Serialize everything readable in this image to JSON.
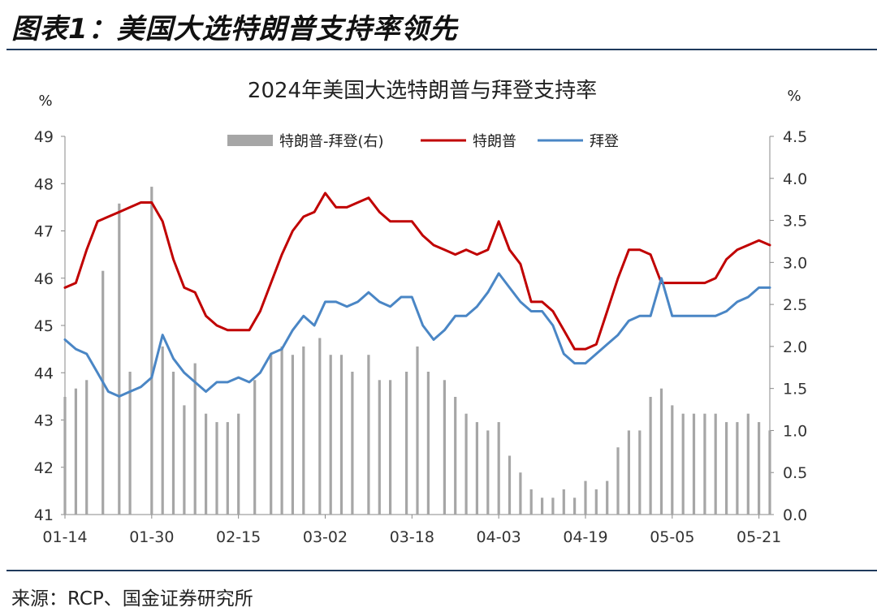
{
  "figure": {
    "title": "图表1：美国大选特朗普支持率领先",
    "source": "来源：RCP、国金证券研究所"
  },
  "chart_data": {
    "type": "line+bar",
    "title": "2024年美国大选特朗普与拜登支持率",
    "left_unit": "%",
    "right_unit": "%",
    "ylim_left": [
      41,
      49
    ],
    "ylim_right": [
      0,
      4.5
    ],
    "left_ticks": [
      "49",
      "48",
      "47",
      "46",
      "45",
      "44",
      "43",
      "42",
      "41"
    ],
    "right_ticks": [
      "4.5",
      "4.0",
      "3.5",
      "3.0",
      "2.5",
      "2.0",
      "1.5",
      "1.0",
      "0.5",
      "0.0"
    ],
    "x_range": [
      "01-14",
      "05-23"
    ],
    "x_ticks": [
      "01-14",
      "01-30",
      "02-15",
      "03-02",
      "03-18",
      "04-03",
      "04-19",
      "05-05",
      "05-21"
    ],
    "legend_position": "top",
    "colors": {
      "trump": "#c00000",
      "biden": "#4a86c5",
      "diff": "#a6a6a6"
    },
    "series": [
      {
        "name": "特朗普-拜登(右)",
        "kind": "bar",
        "axis": "right",
        "x": [
          "01-14",
          "01-16",
          "01-18",
          "01-21",
          "01-24",
          "01-26",
          "01-30",
          "02-01",
          "02-03",
          "02-05",
          "02-07",
          "02-09",
          "02-11",
          "02-13",
          "02-15",
          "02-18",
          "02-21",
          "02-23",
          "02-25",
          "02-27",
          "03-01",
          "03-03",
          "03-05",
          "03-07",
          "03-10",
          "03-12",
          "03-14",
          "03-17",
          "03-19",
          "03-21",
          "03-24",
          "03-26",
          "03-28",
          "03-30",
          "04-01",
          "04-03",
          "04-05",
          "04-07",
          "04-09",
          "04-11",
          "04-13",
          "04-15",
          "04-17",
          "04-19",
          "04-21",
          "04-23",
          "04-25",
          "04-27",
          "04-29",
          "05-01",
          "05-03",
          "05-05",
          "05-07",
          "05-09",
          "05-11",
          "05-13",
          "05-15",
          "05-17",
          "05-19",
          "05-21",
          "05-23"
        ],
        "values": [
          1.4,
          1.5,
          1.6,
          2.9,
          3.7,
          1.7,
          3.9,
          2.0,
          1.7,
          1.3,
          1.8,
          1.2,
          1.1,
          1.1,
          1.2,
          1.6,
          1.9,
          2.0,
          1.9,
          2.0,
          2.1,
          1.9,
          1.9,
          1.7,
          1.9,
          1.6,
          1.6,
          1.7,
          2.0,
          1.7,
          1.6,
          1.4,
          1.2,
          1.1,
          1.0,
          1.1,
          0.7,
          0.5,
          0.3,
          0.2,
          0.2,
          0.3,
          0.2,
          0.4,
          0.3,
          0.4,
          0.8,
          1.0,
          1.0,
          1.4,
          1.5,
          1.3,
          1.2,
          1.2,
          1.2,
          1.2,
          1.1,
          1.1,
          1.2,
          1.1,
          1.0
        ]
      },
      {
        "name": "特朗普",
        "kind": "line",
        "axis": "left",
        "x": [
          "01-14",
          "01-16",
          "01-18",
          "01-20",
          "01-22",
          "01-24",
          "01-26",
          "01-28",
          "01-30",
          "02-01",
          "02-03",
          "02-05",
          "02-07",
          "02-09",
          "02-11",
          "02-13",
          "02-15",
          "02-17",
          "02-19",
          "02-21",
          "02-23",
          "02-25",
          "02-27",
          "02-29",
          "03-02",
          "03-04",
          "03-06",
          "03-08",
          "03-10",
          "03-12",
          "03-14",
          "03-16",
          "03-18",
          "03-20",
          "03-22",
          "03-24",
          "03-26",
          "03-28",
          "03-30",
          "04-01",
          "04-03",
          "04-05",
          "04-07",
          "04-09",
          "04-11",
          "04-13",
          "04-15",
          "04-17",
          "04-19",
          "04-21",
          "04-23",
          "04-25",
          "04-27",
          "04-29",
          "05-01",
          "05-03",
          "05-05",
          "05-07",
          "05-09",
          "05-11",
          "05-13",
          "05-15",
          "05-17",
          "05-19",
          "05-21",
          "05-23"
        ],
        "values": [
          45.8,
          45.9,
          46.6,
          47.2,
          47.3,
          47.4,
          47.5,
          47.6,
          47.6,
          47.2,
          46.4,
          45.8,
          45.7,
          45.2,
          45.0,
          44.9,
          44.9,
          44.9,
          45.3,
          45.9,
          46.5,
          47.0,
          47.3,
          47.4,
          47.8,
          47.5,
          47.5,
          47.6,
          47.7,
          47.4,
          47.2,
          47.2,
          47.2,
          46.9,
          46.7,
          46.6,
          46.5,
          46.6,
          46.5,
          46.6,
          47.2,
          46.6,
          46.3,
          45.5,
          45.5,
          45.3,
          44.9,
          44.5,
          44.5,
          44.6,
          45.3,
          46.0,
          46.6,
          46.6,
          46.5,
          45.9,
          45.9,
          45.9,
          45.9,
          45.9,
          46.0,
          46.4,
          46.6,
          46.7,
          46.8,
          46.7
        ]
      },
      {
        "name": "拜登",
        "kind": "line",
        "axis": "left",
        "x": [
          "01-14",
          "01-16",
          "01-18",
          "01-20",
          "01-22",
          "01-24",
          "01-26",
          "01-28",
          "01-30",
          "02-01",
          "02-03",
          "02-05",
          "02-07",
          "02-09",
          "02-11",
          "02-13",
          "02-15",
          "02-17",
          "02-19",
          "02-21",
          "02-23",
          "02-25",
          "02-27",
          "02-29",
          "03-02",
          "03-04",
          "03-06",
          "03-08",
          "03-10",
          "03-12",
          "03-14",
          "03-16",
          "03-18",
          "03-20",
          "03-22",
          "03-24",
          "03-26",
          "03-28",
          "03-30",
          "04-01",
          "04-03",
          "04-05",
          "04-07",
          "04-09",
          "04-11",
          "04-13",
          "04-15",
          "04-17",
          "04-19",
          "04-21",
          "04-23",
          "04-25",
          "04-27",
          "04-29",
          "05-01",
          "05-03",
          "05-05",
          "05-07",
          "05-09",
          "05-11",
          "05-13",
          "05-15",
          "05-17",
          "05-19",
          "05-21",
          "05-23"
        ],
        "values": [
          44.7,
          44.5,
          44.4,
          44.0,
          43.6,
          43.5,
          43.6,
          43.7,
          43.9,
          44.8,
          44.3,
          44.0,
          43.8,
          43.6,
          43.8,
          43.8,
          43.9,
          43.8,
          44.0,
          44.4,
          44.5,
          44.9,
          45.2,
          45.0,
          45.5,
          45.5,
          45.4,
          45.5,
          45.7,
          45.5,
          45.4,
          45.6,
          45.6,
          45.0,
          44.7,
          44.9,
          45.2,
          45.2,
          45.4,
          45.7,
          46.1,
          45.8,
          45.5,
          45.3,
          45.3,
          45.0,
          44.4,
          44.2,
          44.2,
          44.4,
          44.6,
          44.8,
          45.1,
          45.2,
          45.2,
          46.0,
          45.2,
          45.2,
          45.2,
          45.2,
          45.2,
          45.3,
          45.5,
          45.6,
          45.8,
          45.8
        ]
      }
    ]
  }
}
